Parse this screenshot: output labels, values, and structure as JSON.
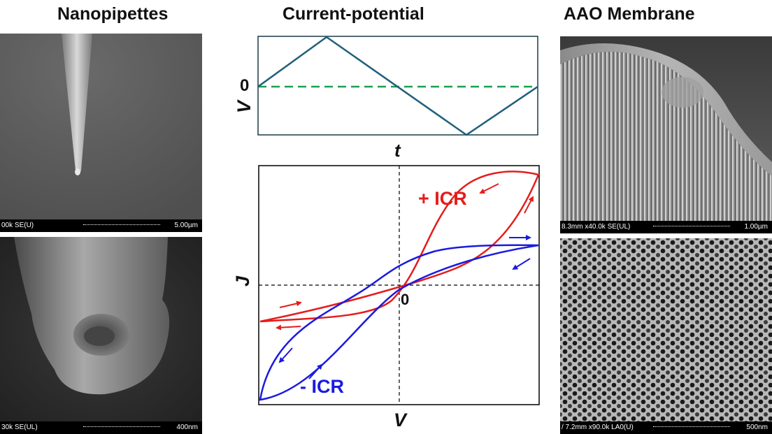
{
  "headings": {
    "left": "Nanopipettes",
    "center": "Current-potential",
    "right": "AAO Membrane"
  },
  "sem_images": {
    "pipette_tip": {
      "info": "00k SE(U)",
      "scale": "5.00µm"
    },
    "pipette_end": {
      "info": "30k SE(UL)",
      "scale": "400nm"
    },
    "aao_side": {
      "info": "8.3mm x40.0k SE(UL)",
      "scale": "1.00µm"
    },
    "aao_top": {
      "info": "/ 7.2mm x90.0k LA0(U)",
      "scale": "500nm"
    }
  },
  "vt_plot": {
    "zero_label": "0",
    "ylabel": "V",
    "xlabel": "t",
    "colors": {
      "wave": "#1f5f7a",
      "baseline": "#1aa050"
    }
  },
  "jv_plot": {
    "ylabel": "J",
    "xlabel": "V",
    "origin_label": "0",
    "plus_icr": "+ ICR",
    "minus_icr": "- ICR",
    "colors": {
      "plus": "#e51c1c",
      "minus": "#1a1ae0",
      "axes": "#000000"
    }
  }
}
